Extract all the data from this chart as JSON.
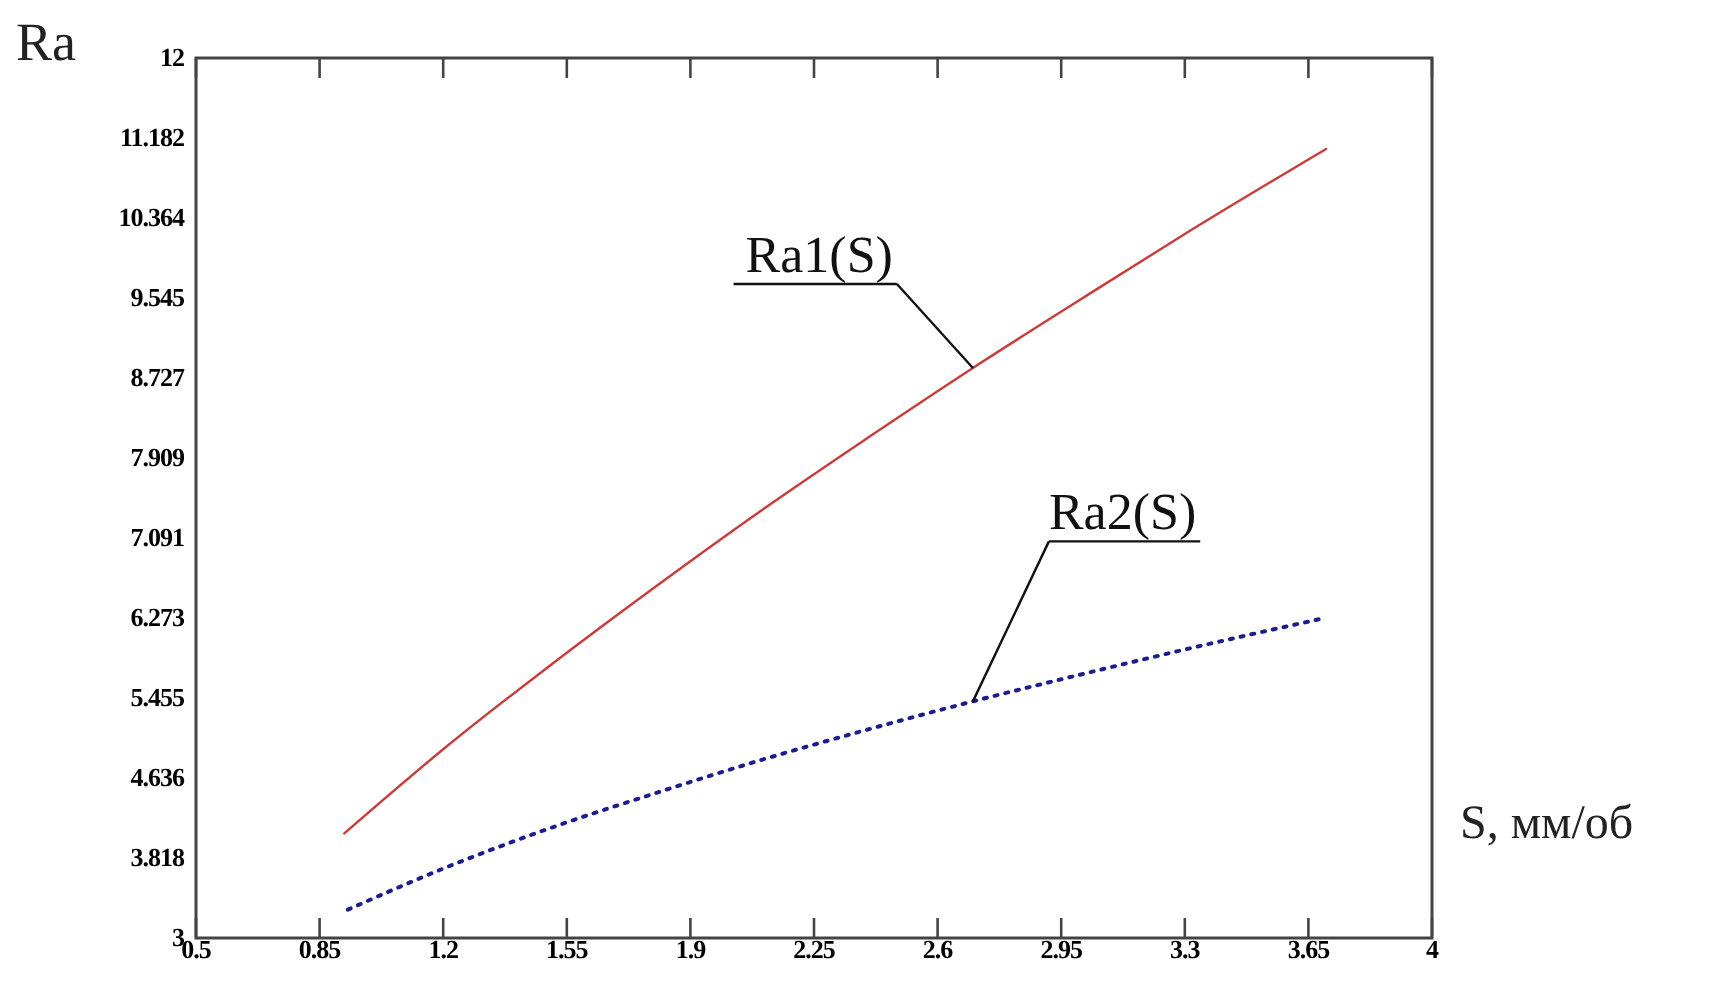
{
  "chart_data": {
    "type": "line",
    "xlabel": "S, мм/об",
    "ylabel": "Ra",
    "xlim": [
      0.5,
      4
    ],
    "xticks": [
      0.5,
      0.85,
      1.2,
      1.55,
      1.9,
      2.25,
      2.6,
      2.95,
      3.3,
      3.65,
      4
    ],
    "ylim": [
      3,
      12
    ],
    "yticks": [
      3,
      3.818,
      4.636,
      5.455,
      6.273,
      7.091,
      7.909,
      8.727,
      9.545,
      10.364,
      11.182,
      12
    ],
    "series": [
      {
        "name": "Ra1(S)",
        "color": "#c83c3c",
        "line_style": "solid",
        "x": [
          0.92,
          1.2,
          1.5,
          1.8,
          2.1,
          2.4,
          2.7,
          3.0,
          3.3,
          3.7
        ],
        "values": [
          4.07,
          4.93,
          5.78,
          6.59,
          7.37,
          8.11,
          8.83,
          9.52,
          10.2,
          11.07
        ]
      },
      {
        "name": "Ra2(S)",
        "color": "#1c1c8c",
        "line_style": "dotted",
        "x": [
          0.93,
          1.2,
          1.5,
          1.8,
          2.1,
          2.4,
          2.7,
          3.0,
          3.3,
          3.68
        ],
        "values": [
          3.29,
          3.71,
          4.12,
          4.48,
          4.82,
          5.13,
          5.42,
          5.69,
          5.95,
          6.26
        ]
      }
    ]
  }
}
